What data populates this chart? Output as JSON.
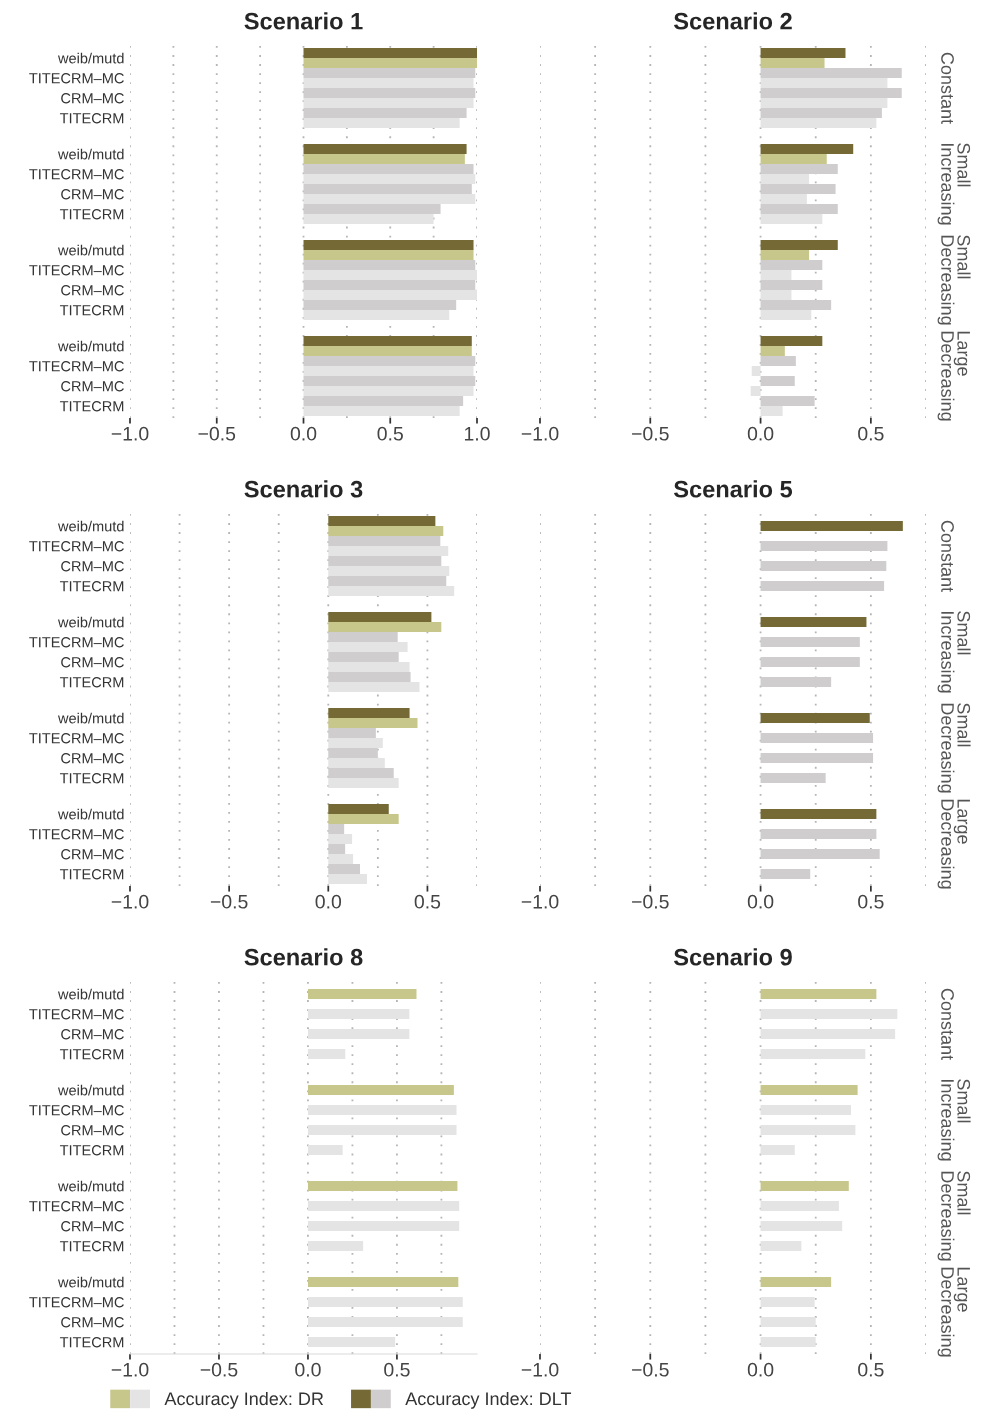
{
  "chart_data": [
    {
      "type": "bar",
      "orientation": "horizontal",
      "title": "Scenario 1",
      "legend": "bottom",
      "grid": "x",
      "categories": [
        "weib/mutd",
        "TITECRM–MC",
        "CRM–MC",
        "TITECRM",
        "weib/mutd",
        "TITECRM–MC",
        "CRM–MC",
        "TITECRM",
        "weib/mutd",
        "TITECRM–MC",
        "CRM–MC",
        "TITECRM",
        "weib/mutd",
        "TITECRM–MC",
        "CRM–MC",
        "TITECRM"
      ],
      "xlim": [
        -1,
        1
      ],
      "xticks": [
        {
          "value": -1,
          "label": "−1.0"
        },
        {
          "value": -0.75,
          "label": null
        },
        {
          "value": -0.5,
          "label": "−0.5"
        },
        {
          "value": -0.25,
          "label": null
        },
        {
          "value": 0,
          "label": "0.0"
        },
        {
          "value": 0.25,
          "label": null
        },
        {
          "value": 0.5,
          "label": "0.5"
        },
        {
          "value": 0.75,
          "label": null
        },
        {
          "value": 1,
          "label": "1.0"
        }
      ],
      "series": [
        {
          "name": "Accuracy Index: DR",
          "colors": [
            "#c7c78b",
            "#e4e4e4",
            "#e4e4e4",
            "#e4e4e4",
            "#c7c78b",
            "#e4e4e4",
            "#e4e4e4",
            "#e4e4e4",
            "#c7c78b",
            "#e4e4e4",
            "#e4e4e4",
            "#e4e4e4",
            "#c7c78b",
            "#e4e4e4",
            "#e4e4e4",
            "#e4e4e4"
          ],
          "values": [
            1.0,
            0.98,
            0.98,
            0.9,
            0.93,
            0.99,
            0.99,
            0.75,
            0.98,
            1.0,
            1.0,
            0.84,
            0.97,
            0.98,
            0.98,
            0.9
          ]
        },
        {
          "name": "Accuracy Index: DLT",
          "colors": [
            "#756a36",
            "#cfcdcd",
            "#cfcdcd",
            "#cfcdcd",
            "#756a36",
            "#cfcdcd",
            "#cfcdcd",
            "#cfcdcd",
            "#756a36",
            "#cfcdcd",
            "#cfcdcd",
            "#cfcdcd",
            "#756a36",
            "#cfcdcd",
            "#cfcdcd",
            "#cfcdcd"
          ],
          "values": [
            1.0,
            0.99,
            0.99,
            0.94,
            0.94,
            0.98,
            0.97,
            0.79,
            0.98,
            0.99,
            0.99,
            0.88,
            0.97,
            0.99,
            0.99,
            0.92
          ]
        }
      ]
    },
    {
      "type": "bar",
      "orientation": "horizontal",
      "title": "Scenario 2",
      "grid": "x",
      "tick_labels": "x",
      "annotations": [
        "Constant",
        "Small\nIncreasing",
        "Small\nDecreasing",
        "Large\nDecreasing"
      ],
      "categories": [
        "weib/mutd",
        "TITECRM–MC",
        "CRM–MC",
        "TITECRM",
        "weib/mutd",
        "TITECRM–MC",
        "CRM–MC",
        "TITECRM",
        "weib/mutd",
        "TITECRM–MC",
        "CRM–MC",
        "TITECRM",
        "weib/mutd",
        "TITECRM–MC",
        "CRM–MC",
        "TITECRM"
      ],
      "xlim": [
        -1,
        0.75
      ],
      "xticks": [
        {
          "value": -1,
          "label": "−1.0"
        },
        {
          "value": -0.75,
          "label": null
        },
        {
          "value": -0.5,
          "label": "−0.5"
        },
        {
          "value": -0.25,
          "label": null
        },
        {
          "value": 0,
          "label": "0.0"
        },
        {
          "value": 0.25,
          "label": null
        },
        {
          "value": 0.5,
          "label": "0.5"
        },
        {
          "value": 0.75,
          "label": null
        }
      ],
      "series": [
        {
          "name": "Accuracy Index: DR",
          "colors": [
            "#c7c78b",
            "#e4e4e4",
            "#e4e4e4",
            "#e4e4e4",
            "#c7c78b",
            "#e4e4e4",
            "#e4e4e4",
            "#e4e4e4",
            "#c7c78b",
            "#e4e4e4",
            "#e4e4e4",
            "#e4e4e4",
            "#c7c78b",
            "#e4e4e4",
            "#e4e4e4",
            "#e4e4e4"
          ],
          "values": [
            0.29,
            0.575,
            0.575,
            0.525,
            0.3,
            0.22,
            0.21,
            0.28,
            0.22,
            0.14,
            0.14,
            0.23,
            0.11,
            -0.04,
            -0.045,
            0.1
          ]
        },
        {
          "name": "Accuracy Index: DLT",
          "colors": [
            "#756a36",
            "#cfcdcd",
            "#cfcdcd",
            "#cfcdcd",
            "#756a36",
            "#cfcdcd",
            "#cfcdcd",
            "#cfcdcd",
            "#756a36",
            "#cfcdcd",
            "#cfcdcd",
            "#cfcdcd",
            "#756a36",
            "#cfcdcd",
            "#cfcdcd",
            "#cfcdcd"
          ],
          "values": [
            0.385,
            0.64,
            0.64,
            0.55,
            0.42,
            0.35,
            0.34,
            0.35,
            0.35,
            0.28,
            0.28,
            0.32,
            0.28,
            0.16,
            0.155,
            0.245
          ]
        }
      ]
    },
    {
      "type": "bar",
      "orientation": "horizontal",
      "title": "Scenario 3",
      "grid": "x",
      "categories": [
        "weib/mutd",
        "TITECRM–MC",
        "CRM–MC",
        "TITECRM",
        "weib/mutd",
        "TITECRM–MC",
        "CRM–MC",
        "TITECRM",
        "weib/mutd",
        "TITECRM–MC",
        "CRM–MC",
        "TITECRM",
        "weib/mutd",
        "TITECRM–MC",
        "CRM–MC",
        "TITECRM"
      ],
      "xlim": [
        -1,
        0.75
      ],
      "xticks": [
        {
          "value": -1,
          "label": "−1.0"
        },
        {
          "value": -0.75,
          "label": null
        },
        {
          "value": -0.5,
          "label": "−0.5"
        },
        {
          "value": -0.25,
          "label": null
        },
        {
          "value": 0,
          "label": "0.0"
        },
        {
          "value": 0.25,
          "label": null
        },
        {
          "value": 0.5,
          "label": "0.5"
        },
        {
          "value": 0.75,
          "label": null
        }
      ],
      "series": [
        {
          "name": "Accuracy Index: DR",
          "colors": [
            "#c7c78b",
            "#e4e4e4",
            "#e4e4e4",
            "#e4e4e4",
            "#c7c78b",
            "#e4e4e4",
            "#e4e4e4",
            "#e4e4e4",
            "#c7c78b",
            "#e4e4e4",
            "#e4e4e4",
            "#e4e4e4",
            "#c7c78b",
            "#e4e4e4",
            "#e4e4e4",
            "#e4e4e4"
          ],
          "values": [
            0.58,
            0.605,
            0.61,
            0.635,
            0.57,
            0.4,
            0.41,
            0.46,
            0.45,
            0.275,
            0.285,
            0.355,
            0.355,
            0.12,
            0.125,
            0.195
          ]
        },
        {
          "name": "Accuracy Index: DLT",
          "colors": [
            "#756a36",
            "#cfcdcd",
            "#cfcdcd",
            "#cfcdcd",
            "#756a36",
            "#cfcdcd",
            "#cfcdcd",
            "#cfcdcd",
            "#756a36",
            "#cfcdcd",
            "#cfcdcd",
            "#cfcdcd",
            "#756a36",
            "#cfcdcd",
            "#cfcdcd",
            "#cfcdcd"
          ],
          "values": [
            0.54,
            0.565,
            0.57,
            0.595,
            0.52,
            0.35,
            0.355,
            0.415,
            0.41,
            0.24,
            0.25,
            0.33,
            0.305,
            0.08,
            0.085,
            0.16
          ]
        }
      ]
    },
    {
      "type": "bar",
      "orientation": "horizontal",
      "title": "Scenario 5",
      "grid": "x",
      "tick_labels": "x",
      "annotations": [
        "Constant",
        "Small\nIncreasing",
        "Small\nDecreasing",
        "Large\nDecreasing"
      ],
      "categories": [
        "weib/mutd",
        "TITECRM–MC",
        "CRM–MC",
        "TITECRM",
        "weib/mutd",
        "TITECRM–MC",
        "CRM–MC",
        "TITECRM",
        "weib/mutd",
        "TITECRM–MC",
        "CRM–MC",
        "TITECRM",
        "weib/mutd",
        "TITECRM–MC",
        "CRM–MC",
        "TITECRM"
      ],
      "xlim": [
        -1,
        0.75
      ],
      "xticks": [
        {
          "value": -1,
          "label": "−1.0"
        },
        {
          "value": -0.75,
          "label": null
        },
        {
          "value": -0.5,
          "label": "−0.5"
        },
        {
          "value": -0.25,
          "label": null
        },
        {
          "value": 0,
          "label": "0.0"
        },
        {
          "value": 0.25,
          "label": null
        },
        {
          "value": 0.5,
          "label": "0.5"
        },
        {
          "value": 0.75,
          "label": null
        }
      ],
      "series": [
        {
          "name": "Accuracy Index: DLT",
          "colors": [
            "#756a36",
            "#cfcdcd",
            "#cfcdcd",
            "#cfcdcd",
            "#756a36",
            "#cfcdcd",
            "#cfcdcd",
            "#cfcdcd",
            "#756a36",
            "#cfcdcd",
            "#cfcdcd",
            "#cfcdcd",
            "#756a36",
            "#cfcdcd",
            "#cfcdcd",
            "#cfcdcd"
          ],
          "values": [
            0.645,
            0.575,
            0.57,
            0.56,
            0.48,
            0.45,
            0.45,
            0.32,
            0.495,
            0.51,
            0.51,
            0.295,
            0.525,
            0.525,
            0.54,
            0.225
          ]
        }
      ]
    },
    {
      "type": "bar",
      "orientation": "horizontal",
      "title": "Scenario 8",
      "grid": "x",
      "categories": [
        "weib/mutd",
        "TITECRM–MC",
        "CRM–MC",
        "TITECRM",
        "weib/mutd",
        "TITECRM–MC",
        "CRM–MC",
        "TITECRM",
        "weib/mutd",
        "TITECRM–MC",
        "CRM–MC",
        "TITECRM",
        "weib/mutd",
        "TITECRM–MC",
        "CRM–MC",
        "TITECRM"
      ],
      "xlim": [
        -1,
        0.95
      ],
      "xticks": [
        {
          "value": -1,
          "label": "−1.0"
        },
        {
          "value": -0.75,
          "label": null
        },
        {
          "value": -0.5,
          "label": "−0.5"
        },
        {
          "value": -0.25,
          "label": null
        },
        {
          "value": 0,
          "label": "0.0"
        },
        {
          "value": 0.25,
          "label": null
        },
        {
          "value": 0.5,
          "label": "0.5"
        },
        {
          "value": 0.75,
          "label": null
        }
      ],
      "series": [
        {
          "name": "Accuracy Index: DR",
          "colors": [
            "#c7c78b",
            "#e4e4e4",
            "#e4e4e4",
            "#e4e4e4",
            "#c7c78b",
            "#e4e4e4",
            "#e4e4e4",
            "#e4e4e4",
            "#c7c78b",
            "#e4e4e4",
            "#e4e4e4",
            "#e4e4e4",
            "#c7c78b",
            "#e4e4e4",
            "#e4e4e4",
            "#e4e4e4"
          ],
          "values": [
            0.61,
            0.57,
            0.57,
            0.21,
            0.82,
            0.835,
            0.835,
            0.195,
            0.84,
            0.85,
            0.85,
            0.31,
            0.845,
            0.87,
            0.87,
            0.49
          ]
        }
      ]
    },
    {
      "type": "bar",
      "orientation": "horizontal",
      "title": "Scenario 9",
      "grid": "x",
      "tick_labels": "x",
      "annotations": [
        "Constant",
        "Small\nIncreasing",
        "Small\nDecreasing",
        "Large\nDecreasing"
      ],
      "categories": [
        "weib/mutd",
        "TITECRM–MC",
        "CRM–MC",
        "TITECRM",
        "weib/mutd",
        "TITECRM–MC",
        "CRM–MC",
        "TITECRM",
        "weib/mutd",
        "TITECRM–MC",
        "CRM–MC",
        "TITECRM",
        "weib/mutd",
        "TITECRM–MC",
        "CRM–MC",
        "TITECRM"
      ],
      "xlim": [
        -1,
        0.75
      ],
      "xticks": [
        {
          "value": -1,
          "label": "−1.0"
        },
        {
          "value": -0.75,
          "label": null
        },
        {
          "value": -0.5,
          "label": "−0.5"
        },
        {
          "value": -0.25,
          "label": null
        },
        {
          "value": 0,
          "label": "0.0"
        },
        {
          "value": 0.25,
          "label": null
        },
        {
          "value": 0.5,
          "label": "0.5"
        },
        {
          "value": 0.75,
          "label": null
        }
      ],
      "series": [
        {
          "name": "Accuracy Index: DR",
          "colors": [
            "#c7c78b",
            "#e4e4e4",
            "#e4e4e4",
            "#e4e4e4",
            "#c7c78b",
            "#e4e4e4",
            "#e4e4e4",
            "#e4e4e4",
            "#c7c78b",
            "#e4e4e4",
            "#e4e4e4",
            "#e4e4e4",
            "#c7c78b",
            "#e4e4e4",
            "#e4e4e4",
            "#e4e4e4"
          ],
          "values": [
            0.525,
            0.62,
            0.61,
            0.475,
            0.44,
            0.41,
            0.43,
            0.155,
            0.4,
            0.355,
            0.37,
            0.185,
            0.32,
            0.245,
            0.25,
            0.25
          ]
        }
      ]
    }
  ]
}
